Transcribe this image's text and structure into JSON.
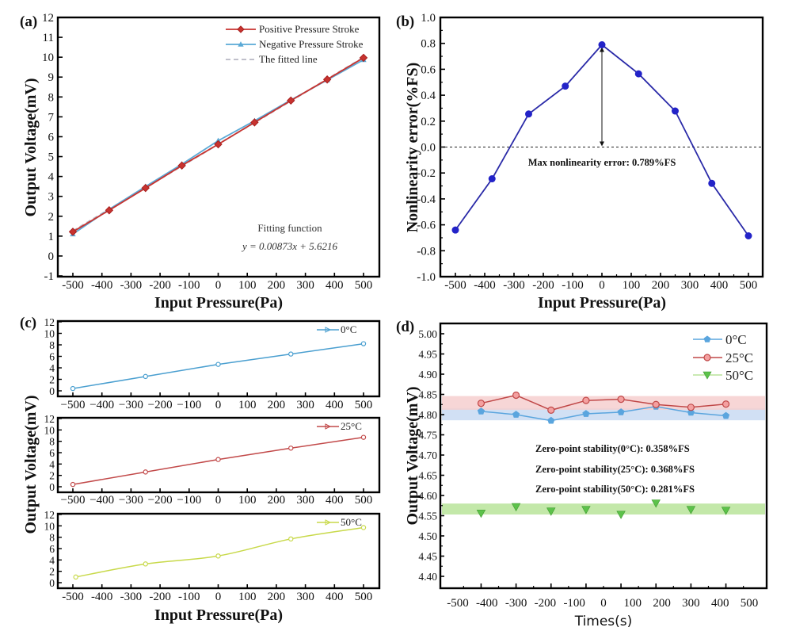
{
  "chart_data": [
    {
      "id": "a",
      "type": "line",
      "panel_label": "(a)",
      "xlabel": "Input Pressure(Pa)",
      "ylabel": "Output Voltage(mV)",
      "xlim": [
        -550,
        550
      ],
      "ylim": [
        -1,
        12
      ],
      "xticks": [
        -500,
        -400,
        -300,
        -200,
        -100,
        0,
        100,
        200,
        300,
        400,
        500
      ],
      "yticks": [
        -1,
        0,
        1,
        2,
        3,
        4,
        5,
        6,
        7,
        8,
        9,
        10,
        11,
        12
      ],
      "x": [
        -500,
        -375,
        -250,
        -125,
        0,
        125,
        250,
        375,
        500
      ],
      "series": [
        {
          "name": "Positive Pressure Stroke",
          "color": "#c8332f",
          "marker": "diamond",
          "values": [
            1.22,
            2.3,
            3.42,
            4.55,
            5.62,
            6.72,
            7.82,
            8.88,
            9.97
          ]
        },
        {
          "name": "Negative Pressure Stroke",
          "color": "#5aa9d6",
          "marker": "triangle",
          "values": [
            1.1,
            2.35,
            3.5,
            4.62,
            5.8,
            6.8,
            7.85,
            8.85,
            9.87
          ]
        },
        {
          "name": "The fitted line",
          "color": "#b8b8c4",
          "marker": "none",
          "dashed": true,
          "values": [
            1.2566,
            2.3478,
            3.4391,
            4.5303,
            5.6216,
            6.7128,
            7.8041,
            8.8953,
            9.9866
          ]
        }
      ],
      "annotations": [
        "Fitting function",
        "y = 0.00873x + 5.6216"
      ],
      "legend_position": "top-right"
    },
    {
      "id": "b",
      "type": "line",
      "panel_label": "(b)",
      "xlabel": "Input Pressure(Pa)",
      "ylabel": "Nonlinearity error(%FS)",
      "xlim": [
        -550,
        550
      ],
      "ylim": [
        -1.0,
        1.0
      ],
      "xticks": [
        -500,
        -400,
        -300,
        -200,
        -100,
        0,
        100,
        200,
        300,
        400,
        500
      ],
      "yticks": [
        "-1.0",
        "-0.8",
        "-0.6",
        "-0.4",
        "-0.2",
        "0.0",
        "0.2",
        "0.4",
        "0.6",
        "0.8",
        "1.0"
      ],
      "x": [
        -500,
        -375,
        -250,
        -125,
        0,
        125,
        250,
        375,
        500
      ],
      "series": [
        {
          "name": "Nonlinearity error",
          "color": "#2a2aa8",
          "marker": "circle",
          "values": [
            -0.64,
            -0.245,
            0.255,
            0.47,
            0.789,
            0.565,
            0.278,
            -0.28,
            -0.685
          ]
        }
      ],
      "reference_line": 0.0,
      "annotations": [
        "Max nonlinearity error: 0.789%FS"
      ]
    },
    {
      "id": "c",
      "type": "line",
      "panel_label": "(c)",
      "xlabel": "Input Pressure(Pa)",
      "ylabel": "Output Voltage(mV)",
      "xlim": [
        -550,
        550
      ],
      "ylim": [
        -1,
        12
      ],
      "xticks": [
        -500,
        -400,
        -300,
        -200,
        -100,
        0,
        100,
        200,
        300,
        400,
        500
      ],
      "xtick_labels_top": [
        "−500",
        "−400",
        "−300",
        "−200",
        "−100",
        "0",
        "100",
        "200",
        "300",
        "400",
        "500"
      ],
      "yticks": [
        0,
        2,
        4,
        6,
        8,
        10,
        12
      ],
      "x": [
        -500,
        -250,
        0,
        250,
        500
      ],
      "series": [
        {
          "name": "0°C",
          "color": "#4a9fd0",
          "marker": "circle",
          "values": [
            0.4,
            2.5,
            4.6,
            6.4,
            8.2
          ]
        },
        {
          "name": "25°C",
          "color": "#c24a4a",
          "marker": "circle",
          "values": [
            0.4,
            2.6,
            4.8,
            6.8,
            8.7
          ]
        },
        {
          "name": "50°C",
          "color": "#c8d94a",
          "marker": "circle",
          "x": [
            -490,
            -250,
            0,
            250,
            500
          ],
          "values": [
            1.0,
            3.3,
            4.7,
            7.7,
            9.7
          ]
        }
      ]
    },
    {
      "id": "d",
      "type": "line",
      "panel_label": "(d)",
      "xlabel": "Times(s)",
      "ylabel": "Output Voltage(mV)",
      "xlim": [
        -550,
        550
      ],
      "ylim": [
        4.38,
        5.02
      ],
      "xticks": [
        -500,
        -400,
        -300,
        -200,
        -100,
        0,
        100,
        200,
        300,
        400,
        500
      ],
      "yticks": [
        "4.40",
        "4.45",
        "4.50",
        "4.55",
        "4.60",
        "4.65",
        "4.70",
        "4.75",
        "4.80",
        "4.85",
        "4.90",
        "4.95",
        "5.00"
      ],
      "x": [
        -420,
        -300,
        -180,
        -60,
        60,
        180,
        300,
        420
      ],
      "series": [
        {
          "name": "0°C",
          "color": "#5aa5de",
          "marker": "pentagon",
          "values": [
            4.808,
            4.8,
            4.785,
            4.802,
            4.806,
            4.82,
            4.805,
            4.797
          ],
          "band": [
            4.786,
            4.816
          ],
          "band_color": "#c9dbf2"
        },
        {
          "name": "25°C",
          "color": "#c04848",
          "marker": "circle",
          "values": [
            4.828,
            4.848,
            4.811,
            4.835,
            4.838,
            4.825,
            4.818,
            4.826
          ],
          "band": [
            4.812,
            4.846
          ],
          "band_color": "#f6cfcf"
        },
        {
          "name": "50°C",
          "color": "#5cc24a",
          "marker": "triangle-down",
          "values": [
            4.556,
            4.572,
            4.561,
            4.565,
            4.553,
            4.581,
            4.565,
            4.563
          ],
          "band": [
            4.553,
            4.58
          ],
          "band_color": "#b8e49a"
        }
      ],
      "annotations": [
        "Zero-point stability(0°C): 0.358%FS",
        "Zero-point stability(25°C): 0.368%FS",
        "Zero-point stability(50°C): 0.281%FS"
      ],
      "legend_position": "top-right"
    }
  ]
}
